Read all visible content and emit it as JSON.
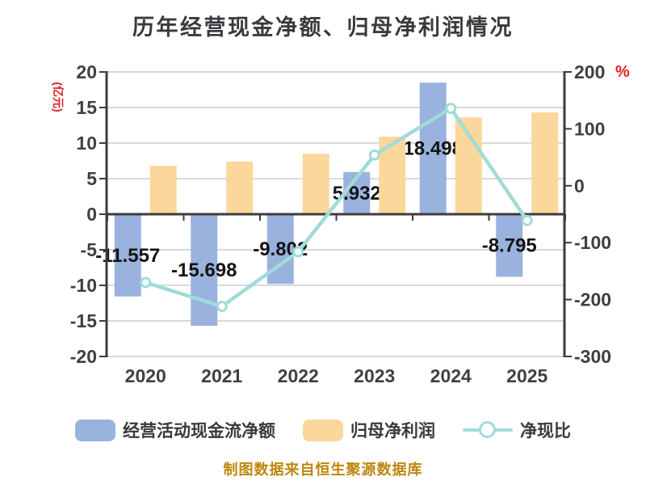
{
  "chart_data": {
    "type": "bar+line combo",
    "title": "历年经营现金净额、归母净利润情况",
    "categories": [
      "2020",
      "2021",
      "2022",
      "2023",
      "2024",
      "2025"
    ],
    "series": [
      {
        "name": "经营活动现金流净额",
        "type": "bar",
        "y_axis": "left",
        "values": [
          -11.557,
          -15.698,
          -9.802,
          5.932,
          18.498,
          -8.795
        ],
        "data_labels_shown": true
      },
      {
        "name": "归母净利润",
        "type": "bar",
        "y_axis": "left",
        "values": [
          6.8,
          7.4,
          8.5,
          10.9,
          13.6,
          14.3
        ],
        "data_labels_shown": false
      },
      {
        "name": "净现比",
        "type": "line",
        "y_axis": "right",
        "values": [
          -170,
          -212,
          -116,
          54,
          136,
          -61
        ],
        "data_labels_shown": false
      }
    ],
    "left_axis": {
      "unit": "(亿元)",
      "min": -20,
      "max": 20,
      "interval": 5,
      "tick_labels": [
        "20",
        "15",
        "10",
        "5",
        "0",
        "-5",
        "-10",
        "-15",
        "-20"
      ]
    },
    "right_axis": {
      "unit": "%",
      "min": -300,
      "max": 200,
      "interval": 100,
      "tick_labels": [
        "200",
        "100",
        "0",
        "-100",
        "-200",
        "-300"
      ]
    },
    "grid": "horizontal gridlines on",
    "legend_position": "bottom"
  },
  "footer_note": "制图数据来自恒生聚源数据库",
  "colors": {
    "bar_blue": "#9ab2de",
    "bar_orange": "#fcd79b",
    "line_teal": "#a0dcd8",
    "marker_fill": "#ffffff",
    "axis": "#3c3c3c",
    "grid": "#d9d9d9",
    "tick_label": "#3f3f45",
    "data_label": "#141414",
    "title": "#3a3a3e",
    "unit_red": "#e02020",
    "footer": "#bd860f"
  }
}
